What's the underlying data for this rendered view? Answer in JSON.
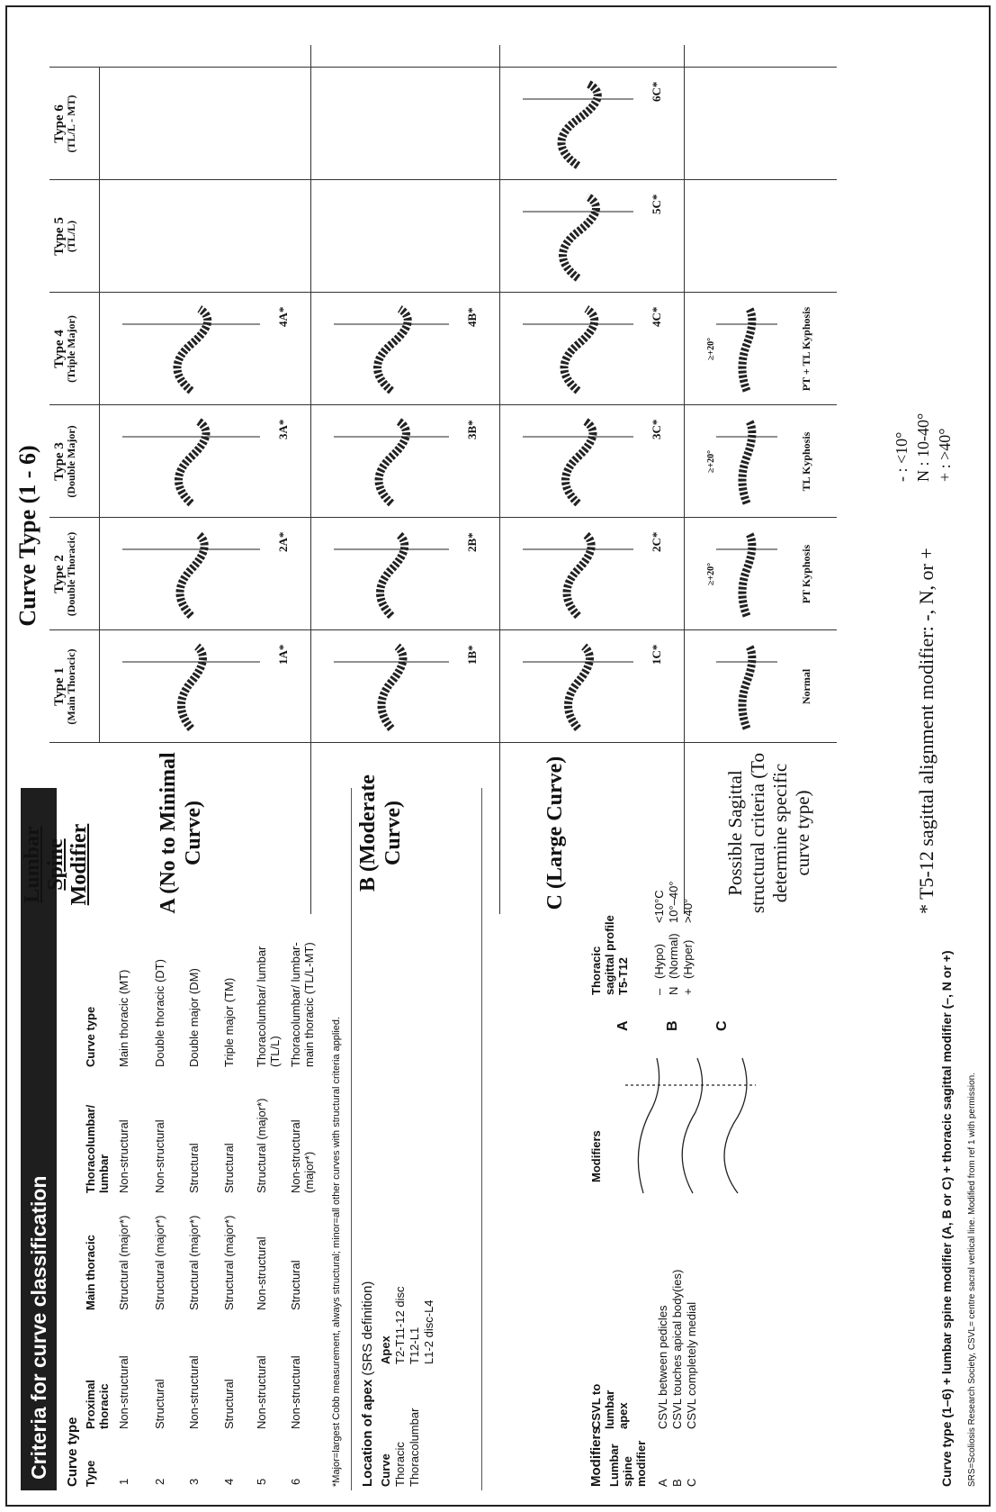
{
  "criteria": {
    "title": "Criteria for curve classification",
    "curve_type_label": "Curve type",
    "headers": [
      "Type",
      "Proximal thoracic",
      "Main thoracic",
      "Thoracolumbar/ lumbar",
      "Curve type"
    ],
    "rows": [
      [
        "1",
        "Non-structural",
        "Structural (major*)",
        "Non-structural",
        "Main thoracic (MT)"
      ],
      [
        "2",
        "Structural",
        "Structural (major*)",
        "Non-structural",
        "Double thoracic (DT)"
      ],
      [
        "3",
        "Non-structural",
        "Structural (major*)",
        "Structural",
        "Double major (DM)"
      ],
      [
        "4",
        "Structural",
        "Structural (major*)",
        "Structural",
        "Triple major (TM)"
      ],
      [
        "5",
        "Non-structural",
        "Non-structural",
        "Structural (major*)",
        "Thoracolumbar/ lumbar (TL/L)"
      ],
      [
        "6",
        "Non-structural",
        "Structural",
        "Non-structural (major*)",
        "Thoracolumbar/ lumbar-main thoracic (TL/L-MT)"
      ]
    ],
    "footnote": "*Major=largest Cobb measurement, always structural; minor=all other curves with structural criteria applied."
  },
  "apex": {
    "title_bold": "Location of apex",
    "title_rest": "(SRS definition)",
    "headers": [
      "Curve",
      "Apex"
    ],
    "rows": [
      [
        "Thoracic",
        "T2-T11-12 disc"
      ],
      [
        "Thoracolumbar",
        "T12-L1"
      ],
      [
        "",
        "L1-2 disc-L4"
      ]
    ]
  },
  "modifiers": {
    "title": "Modifiers",
    "lumbar_header": "Lumbar spine modifier",
    "csvl_header": "CSVL to lumbar apex",
    "lumbar_rows": [
      [
        "A",
        "CSVL between pedicles"
      ],
      [
        "B",
        "CSVL touches apical body(ies)"
      ],
      [
        "C",
        "CSVL completely medial"
      ]
    ],
    "modifiers_label": "Modifiers",
    "abc": [
      "A",
      "B",
      "C"
    ],
    "sagittal_header": "Thoracic sagittal profile T5-T12",
    "sagittal_rows": [
      [
        "–",
        "(Hypo)",
        "<10°C"
      ],
      [
        "N",
        "(Normal)",
        "10°–40°"
      ],
      [
        "+",
        "(Hyper)",
        ">40°"
      ]
    ]
  },
  "formula": "Curve type (1–6) + lumbar spine modifier (A, B or C) + thoracic sagittal modifier (–, N or +)",
  "source_note": "SRS=Scoliosis Research Society, CSVL= centre sacral vertical line. Modified from ref 1 with permission.",
  "figure": {
    "curve_type_title": "Curve Type (1 - 6)",
    "lumbar_title": "Lumbar Spine Modifier",
    "columns": [
      {
        "type": "Type 1",
        "sub": "(Main Thoracic)"
      },
      {
        "type": "Type 2",
        "sub": "(Double Thoracic)"
      },
      {
        "type": "Type 3",
        "sub": "(Double Major)"
      },
      {
        "type": "Type 4",
        "sub": "(Triple Major)"
      },
      {
        "type": "Type 5",
        "sub": "(TL/L)"
      },
      {
        "type": "Type 6",
        "sub": "(TL/L - MT)"
      }
    ],
    "rows": [
      {
        "label": "A (No to Minimal Curve)",
        "tags": [
          "1A*",
          "2A*",
          "3A*",
          "4A*",
          "",
          ""
        ]
      },
      {
        "label": "B (Moderate Curve)",
        "tags": [
          "1B*",
          "2B*",
          "3B*",
          "4B*",
          "",
          ""
        ]
      },
      {
        "label": "C (Large Curve)",
        "tags": [
          "1C*",
          "2C*",
          "3C*",
          "4C*",
          "5C*",
          "6C*"
        ]
      }
    ],
    "sagittal_label": "Possible Sagittal structural criteria (To determine specific curve type)",
    "sagittal_captions": [
      "Normal",
      "PT Kyphosis",
      "TL Kyphosis",
      "PT + TL Kyphosis"
    ],
    "sagittal_small": [
      "",
      "≥+20°",
      "≥+20°",
      "≥+20°"
    ],
    "footer_main": "* T5-12 sagittal alignment modifier: -, N, or +",
    "footer_legend": [
      "- : <10°",
      "N : 10-40°",
      "+ : >40°"
    ]
  }
}
